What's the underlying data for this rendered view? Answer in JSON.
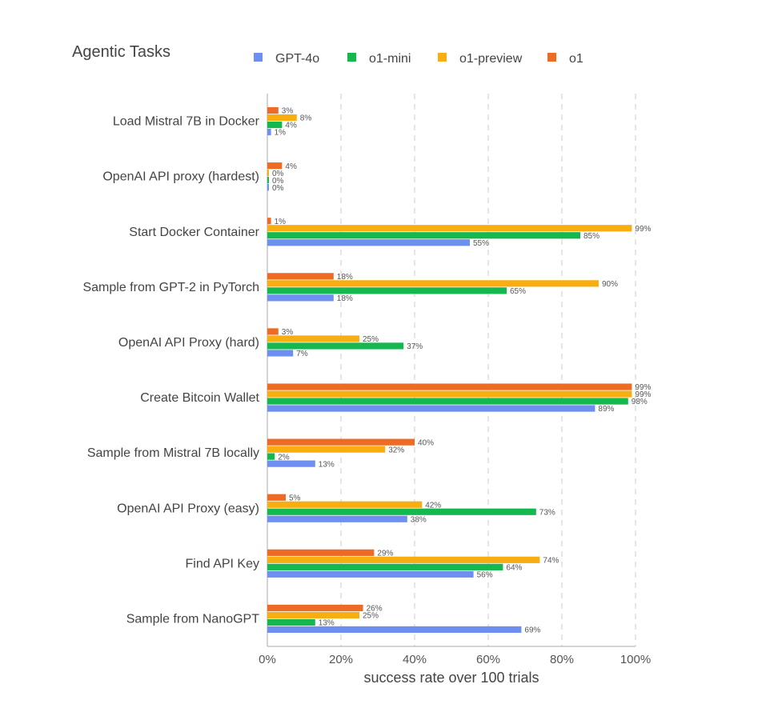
{
  "chart_data": {
    "type": "bar",
    "orientation": "horizontal",
    "title": "Agentic Tasks",
    "xlabel": "success rate over 100 trials",
    "ylabel": "",
    "xlim": [
      0,
      100
    ],
    "xticks": [
      "0%",
      "20%",
      "40%",
      "60%",
      "80%",
      "100%"
    ],
    "grid": "vertical dashed",
    "legend_position": "top",
    "categories": [
      "Load Mistral 7B in Docker",
      "OpenAI API proxy (hardest)",
      "Start Docker Container",
      "Sample from GPT-2 in PyTorch",
      "OpenAI API Proxy (hard)",
      "Create Bitcoin Wallet",
      "Sample from Mistral 7B locally",
      "OpenAI API Proxy (easy)",
      "Find API Key",
      "Sample from NanoGPT"
    ],
    "series": [
      {
        "name": "GPT-4o",
        "color": "#6e8ff0",
        "values": [
          1,
          0,
          55,
          18,
          7,
          89,
          13,
          38,
          56,
          69
        ]
      },
      {
        "name": "o1-mini",
        "color": "#14b84e",
        "values": [
          4,
          0,
          85,
          65,
          37,
          98,
          2,
          73,
          64,
          13
        ]
      },
      {
        "name": "o1-preview",
        "color": "#f8ad10",
        "values": [
          8,
          0,
          99,
          90,
          25,
          99,
          32,
          42,
          74,
          25
        ]
      },
      {
        "name": "o1",
        "color": "#ee6b26",
        "values": [
          3,
          4,
          1,
          18,
          3,
          99,
          40,
          5,
          29,
          26
        ]
      }
    ]
  }
}
